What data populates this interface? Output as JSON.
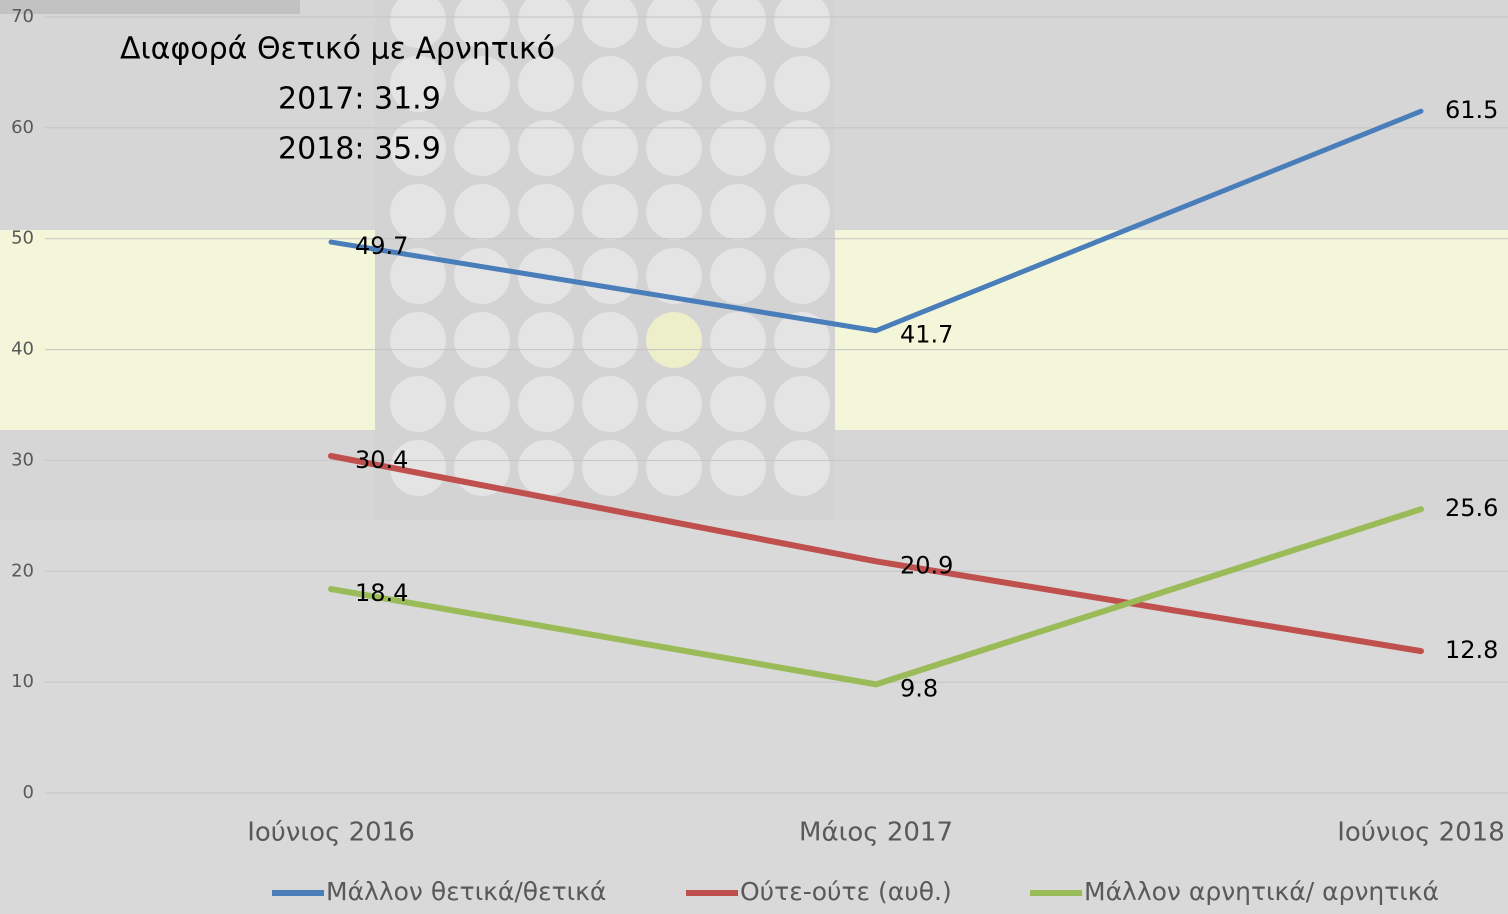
{
  "chart_data": {
    "type": "line",
    "annotations": [
      "Διαφορά Θετικό με Αρνητικό",
      "2017: 31.9",
      "2018: 35.9"
    ],
    "categories": [
      "Ιούνιος 2016",
      "Μάιος 2017",
      "Ιούνιος 2018"
    ],
    "series": [
      {
        "name": "Μάλλον θετικά/θετικά",
        "color": "#4a7ebb",
        "values": [
          49.7,
          41.7,
          61.5
        ]
      },
      {
        "name": "Ούτε-ούτε (αυθ.)",
        "color": "#c0504d",
        "values": [
          30.4,
          20.9,
          12.8
        ]
      },
      {
        "name": "Μάλλον αρνητικά/ αρνητικά",
        "color": "#9bbb59",
        "values": [
          18.4,
          9.8,
          25.6
        ]
      }
    ],
    "ylim": [
      0,
      70
    ],
    "yticks": [
      0,
      10,
      20,
      30,
      40,
      50,
      60,
      70
    ],
    "grid": true,
    "legend": "bottom"
  }
}
